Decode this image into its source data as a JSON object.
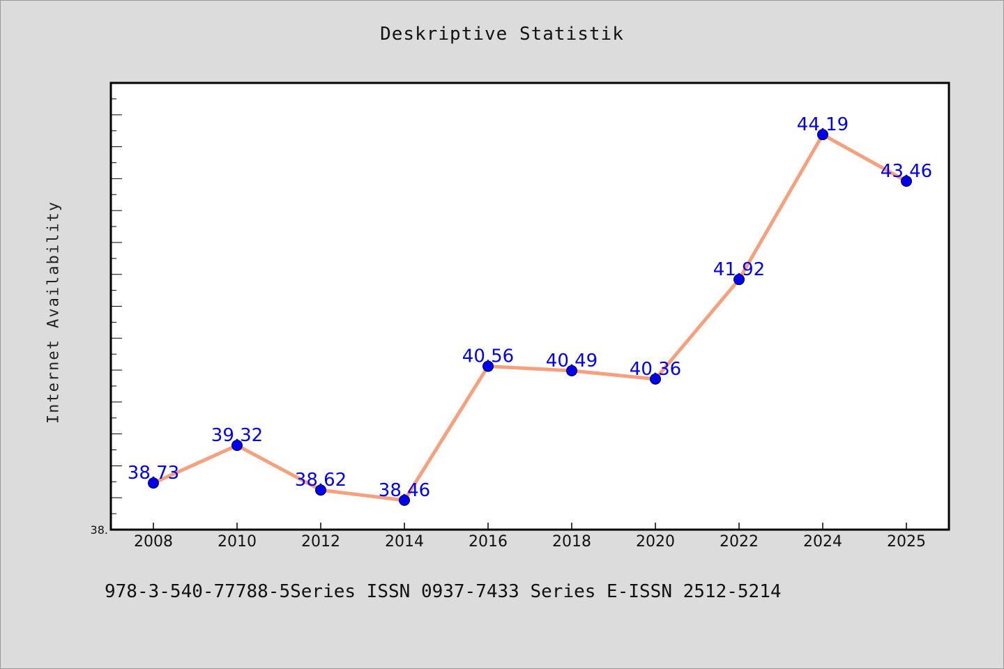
{
  "footer_text": "978-3-540-77788-5Series ISSN 0937-7433 Series E-ISSN 2512-5214",
  "chart_data": {
    "type": "line",
    "title": "Deskriptive Statistik",
    "xlabel": "",
    "ylabel": "Internet Availability",
    "categories": [
      "2008",
      "2010",
      "2012",
      "2014",
      "2016",
      "2018",
      "2020",
      "2022",
      "2024",
      "2025"
    ],
    "series": [
      {
        "values": [
          38.73,
          39.32,
          38.62,
          38.46,
          40.56,
          40.49,
          40.36,
          41.92,
          44.19,
          43.46
        ],
        "data_labels": [
          "38.73",
          "39.32",
          "38.62",
          "38.46",
          "40.56",
          "40.49",
          "40.36",
          "41.92",
          "44.19",
          "43.46"
        ]
      }
    ],
    "ylim": [
      38,
      45
    ],
    "y_tick_label": "38.",
    "grid": false,
    "legend": "none",
    "colors": {
      "line": "#f5a07e",
      "marker": "#0000ee",
      "data_label": "#0000ee",
      "plot_bg": "#ffffff",
      "page_bg": "#dcdcdc"
    }
  }
}
